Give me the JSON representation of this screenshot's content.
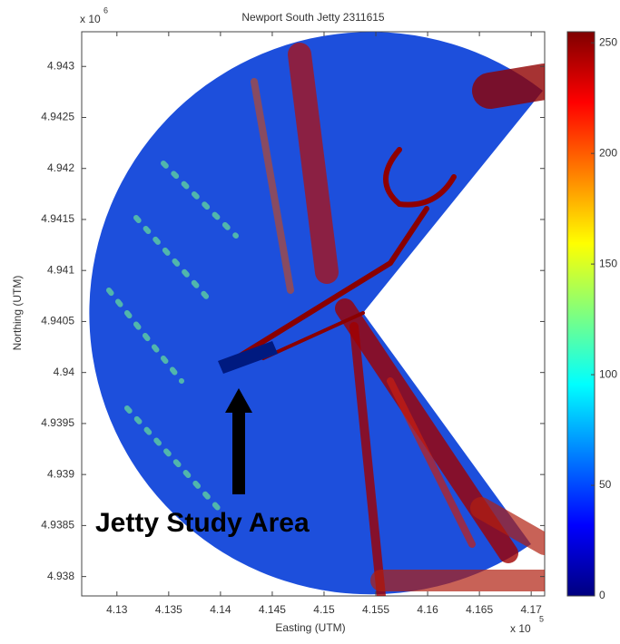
{
  "chart_data": {
    "type": "image",
    "title": "Newport South Jetty 2311615",
    "x_label": "Easting (UTM)",
    "y_label": "Northing (UTM)",
    "x_scale": {
      "base": "x 10",
      "exponent": "5"
    },
    "y_scale": {
      "base": "x 10",
      "exponent": "6"
    },
    "xlim": [
      4.1266,
      4.1713
    ],
    "xticks": [
      4.13,
      4.135,
      4.14,
      4.145,
      4.15,
      4.155,
      4.16,
      4.165,
      4.17
    ],
    "ylim": [
      4.93781,
      4.94334
    ],
    "yticks": [
      4.938,
      4.9385,
      4.939,
      4.9395,
      4.94,
      4.9405,
      4.941,
      4.9415,
      4.942,
      4.9425,
      4.943
    ],
    "clim": [
      0,
      255
    ],
    "cticks": [
      0,
      50,
      100,
      150,
      200,
      250
    ],
    "colormap": [
      "#00007f",
      "#0000ff",
      "#007fff",
      "#00ffff",
      "#7fff7f",
      "#ffff00",
      "#ff7f00",
      "#ff0000",
      "#7f0000"
    ],
    "grid": false,
    "annotation": "Jetty Study Area"
  }
}
